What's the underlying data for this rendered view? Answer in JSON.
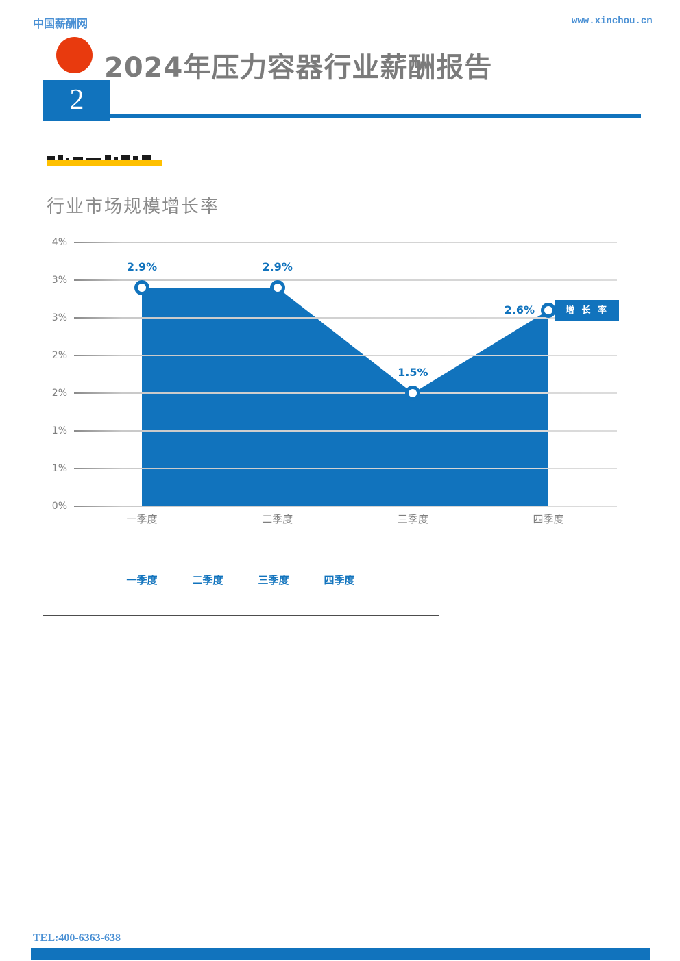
{
  "header": {
    "site_name": "中国薪酬网",
    "site_url": "www.xinchou.cn"
  },
  "title_block": {
    "title": "2024年压力容器行业薪酬报告",
    "page_number": "2"
  },
  "section": {
    "chart_title": "行业市场规模增长率"
  },
  "chart_data": {
    "type": "area",
    "title": "行业市场规模增长率",
    "categories": [
      "一季度",
      "二季度",
      "三季度",
      "四季度"
    ],
    "values": [
      2.9,
      2.9,
      1.5,
      2.6
    ],
    "point_labels": [
      "2.9%",
      "2.9%",
      "1.5%",
      "2.6%"
    ],
    "label_sides": [
      "top",
      "top",
      "top",
      "left"
    ],
    "xlabel": "",
    "ylabel": "",
    "ylim": [
      0,
      3.5
    ],
    "yticks": [
      {
        "value": 3.5,
        "label": "4%"
      },
      {
        "value": 3.0,
        "label": "3%"
      },
      {
        "value": 2.5,
        "label": "3%"
      },
      {
        "value": 2.0,
        "label": "2%"
      },
      {
        "value": 1.5,
        "label": "2%"
      },
      {
        "value": 1.0,
        "label": "1%"
      },
      {
        "value": 0.5,
        "label": "1%"
      },
      {
        "value": 0.0,
        "label": "0%"
      }
    ],
    "grid": true,
    "legend": {
      "label": "增 长 率",
      "position": "right"
    },
    "colors": {
      "area": "#1173bd",
      "point_label": "#1173bd",
      "legend_bg": "#1173bd"
    }
  },
  "table": {
    "columns": [
      "一季度",
      "二季度",
      "三季度",
      "四季度"
    ],
    "rows": [
      [
        "",
        "",
        "",
        ""
      ]
    ]
  },
  "footer": {
    "tel": "TEL:400-6363-638"
  },
  "colors": {
    "primary_blue": "#1173bd",
    "link_blue": "#4a90d4",
    "accent_red": "#e83a0e",
    "highlight_yellow": "#ffc000",
    "title_gray": "#7b7b7b",
    "axis_gray": "#7f7f7f"
  }
}
